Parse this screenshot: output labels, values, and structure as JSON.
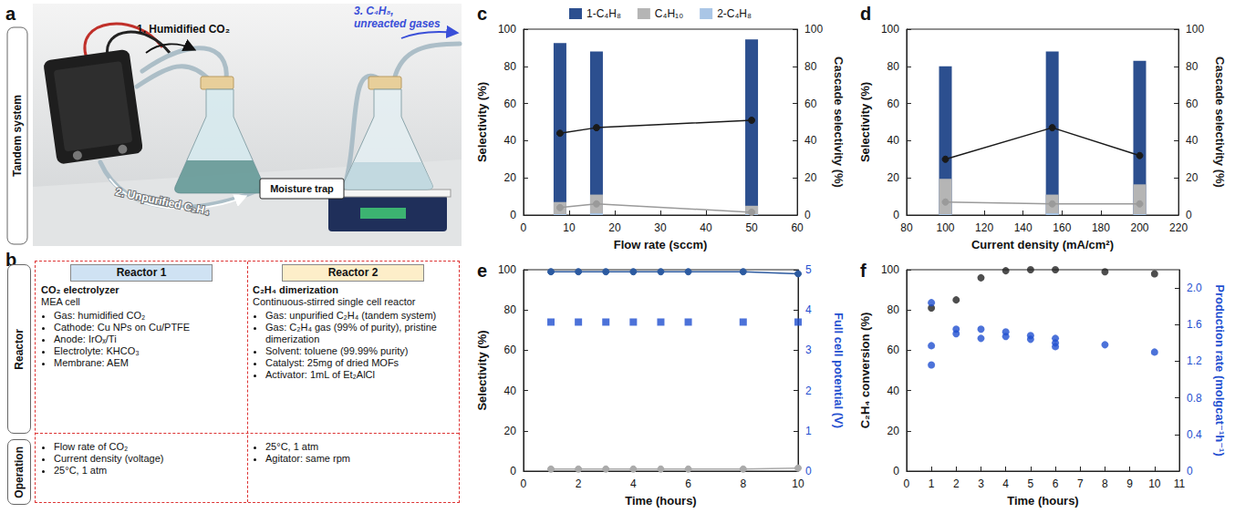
{
  "diagram": {
    "a": {
      "label": "a",
      "side_label": "Tandem system",
      "steps": [
        "1. Humidified CO₂",
        "2. Unpurified C₂H₄",
        "3. C₄H₈, unreacted gases"
      ],
      "trap": "Moisture trap"
    },
    "b": {
      "label": "b",
      "row_heads": [
        "Reactor",
        "Operation"
      ],
      "columns": [
        {
          "head": "Reactor 1",
          "title": "CO₂ electrolyzer",
          "subtitle": "MEA cell",
          "items": [
            "Gas: humidified CO₂",
            "Cathode: Cu NPs on Cu/PTFE",
            "Anode: IrOₓ/Ti",
            "Electrolyte: KHCO₃",
            "Membrane: AEM"
          ],
          "operation": [
            "Flow rate of CO₂",
            "Current density (voltage)",
            "25°C, 1 atm"
          ]
        },
        {
          "head": "Reactor 2",
          "title": "C₂H₄ dimerization",
          "subtitle": "Continuous-stirred single cell reactor",
          "items": [
            "Gas: unpurified C₂H₄ (tandem system)",
            "Gas: C₂H₄ gas (99% of purity), pristine dimerization",
            "Solvent: toluene (99.99% purity)",
            "Catalyst: 25mg of dried MOFs",
            "Activator: 1mL of Et₂AlCl"
          ],
          "operation": [
            "25°C, 1 atm",
            "Agitator: same rpm"
          ]
        }
      ]
    }
  },
  "chart_data": [
    {
      "panel": "c",
      "type": "bar",
      "stacked": true,
      "grid": false,
      "legend": "top",
      "x": [
        8,
        16,
        50
      ],
      "xlabel": "Flow rate (sccm)",
      "ylabel": "Selectivity (%)",
      "y2label": "Cascade selectivity (%)",
      "xlim": [
        0,
        60
      ],
      "xticks": [
        0,
        10,
        20,
        30,
        40,
        50,
        60
      ],
      "ylim": [
        0,
        100
      ],
      "yticks": [
        0,
        20,
        40,
        60,
        80,
        100
      ],
      "y2lim": [
        0,
        100
      ],
      "y2ticks": [
        0,
        20,
        40,
        60,
        80,
        100
      ],
      "series": [
        {
          "name": "1-C₄H₈",
          "type": "bar",
          "color": "#2c4f8f",
          "values": [
            92.5,
            88,
            94.5
          ]
        },
        {
          "name": "C₄H₁₀",
          "type": "bar",
          "color": "#b5b5b5",
          "values": [
            7,
            11,
            5
          ]
        },
        {
          "name": "2-C₄H₈",
          "type": "bar",
          "color": "#aac6e6",
          "values": [
            0.5,
            1,
            0.5
          ]
        },
        {
          "name": "1-C₄H₈",
          "type": "line",
          "axis": "y2",
          "color": "#1a1a1a",
          "marker": "circle",
          "values": [
            44,
            47,
            51
          ]
        },
        {
          "name": "C₄H₁₀",
          "type": "line",
          "axis": "y2",
          "color": "#9a9a9a",
          "marker": "circle",
          "values": [
            4,
            6,
            1.5
          ]
        }
      ]
    },
    {
      "panel": "d",
      "type": "bar",
      "stacked": true,
      "grid": false,
      "x": [
        100,
        155,
        200
      ],
      "xlabel": "Current density (mA/cm²)",
      "ylabel": "Selectivity (%)",
      "y2label": "Cascade selectivity (%)",
      "xlim": [
        80,
        220
      ],
      "xticks": [
        80,
        100,
        120,
        140,
        160,
        180,
        200,
        220
      ],
      "ylim": [
        0,
        100
      ],
      "yticks": [
        0,
        20,
        40,
        60,
        80,
        100
      ],
      "y2lim": [
        0,
        100
      ],
      "y2ticks": [
        0,
        20,
        40,
        60,
        80,
        100
      ],
      "series": [
        {
          "name": "1-C₄H₈",
          "type": "bar",
          "color": "#2c4f8f",
          "values": [
            80,
            88,
            83
          ]
        },
        {
          "name": "C₄H₁₀",
          "type": "bar",
          "color": "#b5b5b5",
          "values": [
            19.5,
            11,
            16.5
          ]
        },
        {
          "name": "2-C₄H₈",
          "type": "bar",
          "color": "#aac6e6",
          "values": [
            0.5,
            1,
            0.5
          ]
        },
        {
          "name": "1-C₄H₈",
          "type": "line",
          "axis": "y2",
          "color": "#1a1a1a",
          "marker": "circle",
          "values": [
            30,
            47,
            32
          ]
        },
        {
          "name": "C₄H₁₀",
          "type": "line",
          "axis": "y2",
          "color": "#9a9a9a",
          "marker": "circle",
          "values": [
            7,
            6,
            6
          ]
        }
      ]
    },
    {
      "panel": "e",
      "type": "line",
      "grid": false,
      "x": [
        1,
        2,
        3,
        4,
        5,
        6,
        8,
        10
      ],
      "xlabel": "Time (hours)",
      "ylabel": "Selectivity (%)",
      "y2label": "Full cell potential (V)",
      "xlim": [
        0,
        10
      ],
      "xticks": [
        0,
        2,
        4,
        6,
        8,
        10
      ],
      "ylim": [
        0,
        100
      ],
      "yticks": [
        0,
        20,
        40,
        60,
        80,
        100
      ],
      "y2lim": [
        0,
        5
      ],
      "y2ticks": [
        0,
        1,
        2,
        3,
        4,
        5
      ],
      "series": [
        {
          "type": "line",
          "color": "#2c5aa0",
          "marker": "circle",
          "values": [
            99,
            99,
            99,
            99,
            99,
            99,
            99,
            98
          ]
        },
        {
          "type": "line",
          "color": "#aaaaaa",
          "marker": "circle",
          "values": [
            1,
            1,
            1,
            1,
            1,
            1,
            1,
            1.5
          ]
        },
        {
          "type": "scatter",
          "axis": "y2",
          "color": "#1f4fd0",
          "marker": "square",
          "values": [
            3.7,
            3.7,
            3.7,
            3.7,
            3.7,
            3.7,
            3.7,
            3.7
          ]
        }
      ]
    },
    {
      "panel": "f",
      "type": "scatter",
      "grid": false,
      "xlabel": "Time (hours)",
      "ylabel": "C₂H₄ conversion (%)",
      "y2label": "Production rate (molgcat⁻¹h⁻¹)",
      "xlim": [
        0,
        11
      ],
      "xticks": [
        0,
        1,
        2,
        3,
        4,
        5,
        6,
        7,
        8,
        9,
        10,
        11
      ],
      "ylim": [
        0,
        100
      ],
      "yticks": [
        0,
        20,
        40,
        60,
        80,
        100
      ],
      "y2lim": [
        0,
        2.2
      ],
      "y2ticks": [
        0,
        0.4,
        0.8,
        1.2,
        1.6,
        {
          "value": 2,
          "label": "2.0"
        }
      ],
      "series": [
        {
          "type": "scatter",
          "color": "#222222",
          "marker": "circle",
          "x": [
            1,
            2,
            3,
            4,
            5,
            6,
            8,
            10
          ],
          "values": [
            81,
            85,
            96,
            99.5,
            100,
            100,
            99,
            98
          ]
        },
        {
          "type": "scatter",
          "axis": "y2",
          "color": "#1f4fd0",
          "marker": "circle",
          "x": [
            1,
            1,
            1,
            2,
            2,
            3,
            3,
            4,
            4,
            5,
            5,
            6,
            6,
            6,
            8,
            10
          ],
          "values": [
            1.84,
            1.37,
            1.16,
            1.55,
            1.5,
            1.55,
            1.45,
            1.52,
            1.47,
            1.48,
            1.44,
            1.45,
            1.4,
            1.36,
            1.38,
            1.3
          ]
        }
      ]
    }
  ]
}
